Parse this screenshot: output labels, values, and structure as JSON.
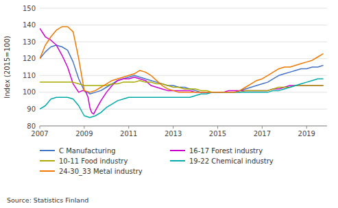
{
  "chart_data": {
    "type": "line",
    "ylabel": "Index (2015=100)",
    "source": "Source: Statistics Finland",
    "xlim": [
      2007.0,
      2019.917
    ],
    "xticks": [
      2007,
      2009,
      2011,
      2013,
      2015,
      2017,
      2019
    ],
    "ylim": [
      80,
      150
    ],
    "yticks": [
      80,
      90,
      100,
      110,
      120,
      130,
      140,
      150
    ],
    "grid": "y",
    "legend": "bottom",
    "series": [
      {
        "name": "C Manufacturing",
        "color": "#4472c4",
        "x": [
          2007.0,
          2007.25,
          2007.5,
          2007.75,
          2008.0,
          2008.25,
          2008.5,
          2008.75,
          2009.0,
          2009.08,
          2009.17,
          2009.25,
          2009.5,
          2009.75,
          2010.0,
          2010.25,
          2010.5,
          2010.75,
          2011.0,
          2011.25,
          2011.5,
          2011.75,
          2012.0,
          2012.25,
          2012.5,
          2012.75,
          2013.0,
          2013.25,
          2013.5,
          2013.75,
          2014.0,
          2014.25,
          2014.5,
          2014.75,
          2015.0,
          2015.25,
          2015.5,
          2015.75,
          2016.0,
          2016.25,
          2016.5,
          2016.75,
          2017.0,
          2017.25,
          2017.5,
          2017.75,
          2018.0,
          2018.25,
          2018.5,
          2018.75,
          2019.0,
          2019.25,
          2019.5,
          2019.75
        ],
        "values": [
          120,
          124,
          127,
          128,
          127,
          125,
          118,
          108,
          101,
          100,
          100,
          99,
          100,
          101,
          103,
          105,
          107,
          108,
          109,
          110,
          109,
          108,
          107,
          106,
          105,
          104,
          104,
          103,
          103,
          102,
          101,
          100,
          100,
          100,
          100,
          100,
          100,
          100,
          101,
          102,
          103,
          104,
          105,
          106,
          108,
          110,
          111,
          112,
          113,
          114,
          114,
          115,
          115,
          116
        ]
      },
      {
        "name": "16-17 Forest industry",
        "color": "#cc00cc",
        "x": [
          2007.0,
          2007.25,
          2007.5,
          2007.75,
          2008.0,
          2008.25,
          2008.5,
          2008.75,
          2008.92,
          2009.0,
          2009.08,
          2009.17,
          2009.25,
          2009.33,
          2009.42,
          2009.5,
          2009.75,
          2010.0,
          2010.25,
          2010.5,
          2010.75,
          2011.0,
          2011.25,
          2011.5,
          2011.75,
          2012.0,
          2012.25,
          2012.5,
          2012.75,
          2013.0,
          2013.25,
          2013.5,
          2013.75,
          2014.0,
          2014.25,
          2014.5,
          2014.75,
          2015.0,
          2015.25,
          2015.5,
          2015.75,
          2016.0,
          2016.25,
          2016.5,
          2016.75,
          2017.0,
          2017.25,
          2017.5,
          2017.75,
          2018.0,
          2018.25,
          2018.5,
          2018.75,
          2019.0,
          2019.25,
          2019.5,
          2019.75
        ],
        "values": [
          138,
          133,
          131,
          128,
          122,
          115,
          105,
          100,
          101,
          101,
          100,
          97,
          91,
          88,
          87,
          89,
          95,
          100,
          104,
          107,
          108,
          108,
          109,
          108,
          107,
          104,
          103,
          102,
          101,
          101,
          101,
          101,
          101,
          100,
          100,
          100,
          100,
          100,
          100,
          101,
          101,
          101,
          101,
          101,
          101,
          101,
          101,
          102,
          102,
          103,
          104,
          104,
          104,
          104,
          104,
          104,
          104
        ]
      },
      {
        "name": "10-11 Food industry",
        "color": "#aaaa00",
        "x": [
          2007.0,
          2007.25,
          2007.5,
          2007.75,
          2008.0,
          2008.25,
          2008.5,
          2008.75,
          2009.0,
          2009.25,
          2009.5,
          2009.75,
          2010.0,
          2010.25,
          2010.5,
          2010.75,
          2011.0,
          2011.25,
          2011.5,
          2011.75,
          2012.0,
          2012.25,
          2012.5,
          2012.75,
          2013.0,
          2013.25,
          2013.5,
          2013.75,
          2014.0,
          2014.25,
          2014.5,
          2014.75,
          2015.0,
          2015.25,
          2015.5,
          2015.75,
          2016.0,
          2016.25,
          2016.5,
          2016.75,
          2017.0,
          2017.25,
          2017.5,
          2017.75,
          2018.0,
          2018.25,
          2018.5,
          2018.75,
          2019.0,
          2019.25,
          2019.5,
          2019.75
        ],
        "values": [
          106,
          106,
          106,
          106,
          106,
          106,
          106,
          105,
          104,
          104,
          104,
          104,
          104,
          105,
          105,
          106,
          106,
          106,
          107,
          106,
          106,
          105,
          105,
          104,
          103,
          103,
          102,
          102,
          102,
          101,
          101,
          100,
          100,
          100,
          100,
          100,
          100,
          101,
          101,
          101,
          101,
          101,
          102,
          103,
          103,
          103,
          104,
          104,
          104,
          104,
          104,
          104
        ]
      },
      {
        "name": "19-22 Chemical industry",
        "color": "#00aaaa",
        "x": [
          2007.0,
          2007.25,
          2007.5,
          2007.75,
          2008.0,
          2008.25,
          2008.5,
          2008.75,
          2009.0,
          2009.25,
          2009.5,
          2009.75,
          2010.0,
          2010.25,
          2010.5,
          2010.75,
          2011.0,
          2011.25,
          2011.5,
          2011.75,
          2012.0,
          2012.25,
          2012.5,
          2012.75,
          2013.0,
          2013.25,
          2013.5,
          2013.75,
          2014.0,
          2014.25,
          2014.5,
          2014.75,
          2015.0,
          2015.25,
          2015.5,
          2015.75,
          2016.0,
          2016.25,
          2016.5,
          2016.75,
          2017.0,
          2017.25,
          2017.5,
          2017.75,
          2018.0,
          2018.25,
          2018.5,
          2018.75,
          2019.0,
          2019.25,
          2019.5,
          2019.75
        ],
        "values": [
          90,
          92,
          96,
          97,
          97,
          97,
          96,
          92,
          86,
          85,
          86,
          88,
          91,
          93,
          95,
          96,
          97,
          97,
          97,
          97,
          97,
          97,
          97,
          97,
          97,
          97,
          97,
          97,
          98,
          99,
          99,
          100,
          100,
          100,
          100,
          100,
          100,
          100,
          100,
          100,
          100,
          100,
          101,
          101,
          102,
          103,
          104,
          105,
          106,
          107,
          108,
          108
        ]
      },
      {
        "name": "24-30_33 Metal industry",
        "color": "#f07800",
        "x": [
          2007.0,
          2007.25,
          2007.5,
          2007.75,
          2008.0,
          2008.25,
          2008.5,
          2008.75,
          2009.0,
          2009.25,
          2009.5,
          2009.75,
          2010.0,
          2010.25,
          2010.5,
          2010.75,
          2011.0,
          2011.25,
          2011.5,
          2011.75,
          2012.0,
          2012.25,
          2012.5,
          2012.75,
          2013.0,
          2013.25,
          2013.5,
          2013.75,
          2014.0,
          2014.25,
          2014.5,
          2014.75,
          2015.0,
          2015.25,
          2015.5,
          2015.75,
          2016.0,
          2016.25,
          2016.5,
          2016.75,
          2017.0,
          2017.25,
          2017.5,
          2017.75,
          2018.0,
          2018.25,
          2018.5,
          2018.75,
          2019.0,
          2019.25,
          2019.5,
          2019.75
        ],
        "values": [
          120,
          128,
          133,
          137,
          139,
          139,
          136,
          120,
          101,
          100,
          101,
          103,
          105,
          107,
          108,
          109,
          110,
          111,
          113,
          112,
          110,
          107,
          104,
          102,
          101,
          100,
          100,
          100,
          100,
          100,
          100,
          100,
          100,
          100,
          100,
          100,
          101,
          103,
          105,
          107,
          108,
          110,
          112,
          114,
          115,
          115,
          116,
          117,
          118,
          119,
          121,
          123
        ]
      }
    ]
  }
}
